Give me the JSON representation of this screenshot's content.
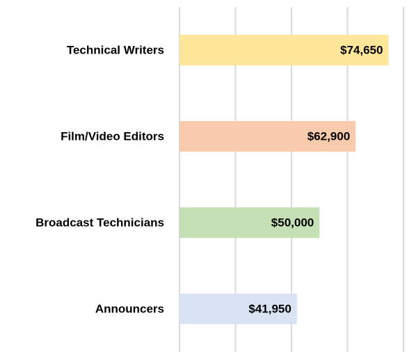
{
  "chart_data": {
    "type": "barh",
    "categories": [
      "Technical Writers",
      "Film/Video Editors",
      "Broadcast Technicians",
      "Announcers"
    ],
    "values": [
      74650,
      62900,
      50000,
      41950
    ],
    "value_labels": [
      "$74,650",
      "$62,900",
      "$50,000",
      "$41,950"
    ],
    "colors": [
      "#ffe699",
      "#f8cbad",
      "#c5e0b4",
      "#dae3f3"
    ],
    "xlim": [
      0,
      80000
    ],
    "xticks": [
      0,
      20000,
      40000,
      60000,
      80000
    ],
    "grid": true
  }
}
